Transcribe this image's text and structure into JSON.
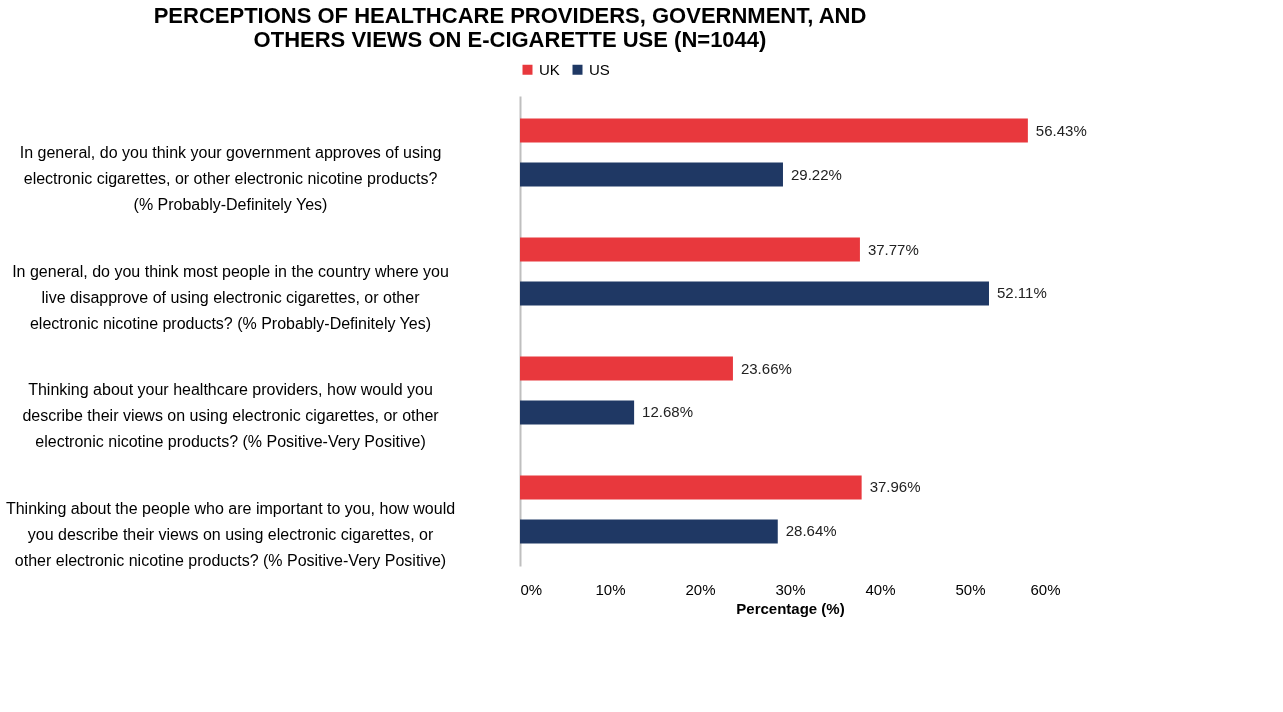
{
  "chart_data": {
    "type": "bar",
    "orientation": "horizontal",
    "title": "PERCEPTIONS OF HEALTHCARE PROVIDERS, GOVERNMENT, AND OTHERS VIEWS ON E-CIGARETTE USE (N=1044)",
    "xlabel": "Percentage (%)",
    "categories": [
      "In general, do you think your government approves of using electronic cigarettes, or other electronic nicotine products? (% Probably-Definitely Yes)",
      "In general, do you think most people in the country where you live disapprove of using electronic cigarettes, or other electronic nicotine products? (% Probably-Definitely Yes)",
      "Thinking about your healthcare providers, how would you describe their views on using electronic cigarettes, or other electronic nicotine products? (% Positive-Very Positive)",
      "Thinking about the people who are important to you, how would you describe their views on using electronic cigarettes, or other electronic nicotine products? (% Positive-Very Positive)"
    ],
    "series": [
      {
        "name": "UK",
        "color": "#e8383d",
        "values": [
          56.43,
          37.77,
          23.66,
          37.96
        ],
        "value_labels": [
          "56.43%",
          "37.77%",
          "23.66%",
          "37.96%"
        ]
      },
      {
        "name": "US",
        "color": "#1f3864",
        "values": [
          29.22,
          52.11,
          12.68,
          28.64
        ],
        "value_labels": [
          "29.22%",
          "52.11%",
          "12.68%",
          "28.64%"
        ]
      }
    ],
    "xlim": [
      0,
      60
    ],
    "xticks": [
      {
        "value": 0,
        "label": "0%"
      },
      {
        "value": 10,
        "label": "10%"
      },
      {
        "value": 20,
        "label": "20%"
      },
      {
        "value": 30,
        "label": "30%"
      },
      {
        "value": 40,
        "label": "40%"
      },
      {
        "value": 50,
        "label": "50%"
      },
      {
        "value": 60,
        "label": "60%"
      }
    ],
    "legend": "top",
    "grid": false
  }
}
